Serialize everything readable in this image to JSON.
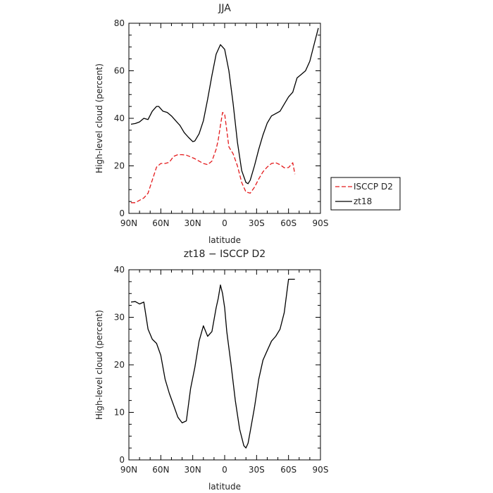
{
  "chart_data": [
    {
      "type": "line",
      "title": "JJA",
      "xlabel": "latitude",
      "ylabel": "High-level cloud (percent)",
      "xlim": [
        90,
        -90
      ],
      "ylim": [
        0,
        80
      ],
      "x_tick_values": [
        90,
        60,
        30,
        0,
        -30,
        -60,
        -90
      ],
      "x_tick_labels": [
        "90N",
        "60N",
        "30N",
        "0",
        "30S",
        "60S",
        "90S"
      ],
      "y_tick_values": [
        0,
        20,
        40,
        60,
        80
      ],
      "y_tick_labels": [
        "0",
        "20",
        "40",
        "60",
        "80"
      ],
      "legend": "right",
      "series": [
        {
          "name": "ISCCP D2",
          "color": "#e41a1c",
          "style": "dashed",
          "x": [
            88,
            84,
            80,
            76,
            72,
            68,
            64,
            60,
            56,
            52,
            48,
            44,
            40,
            36,
            32,
            28,
            24,
            20,
            16,
            12,
            8,
            6,
            4,
            2,
            0,
            -4,
            -8,
            -12,
            -16,
            -20,
            -24,
            -28,
            -32,
            -36,
            -40,
            -44,
            -48,
            -52,
            -56,
            -60,
            -64,
            -66
          ],
          "y": [
            4.5,
            4.5,
            5.5,
            6.5,
            8.5,
            14,
            19.5,
            21,
            21,
            21.5,
            24,
            24.7,
            24.7,
            24.5,
            23.8,
            23,
            22,
            21,
            20.5,
            22,
            27,
            31,
            37,
            42.5,
            41.8,
            28,
            25,
            20,
            13,
            9,
            8.5,
            11,
            14.5,
            17.5,
            19.5,
            21,
            21.3,
            20.5,
            19.2,
            19.3,
            21.3,
            16.5
          ]
        },
        {
          "name": "zt18",
          "color": "#000000",
          "style": "solid",
          "x": [
            88,
            84,
            80,
            76,
            72,
            68,
            64,
            62,
            58,
            54,
            50,
            46,
            42,
            38,
            34,
            30,
            28,
            24,
            20,
            16,
            12,
            8,
            4,
            0,
            -4,
            -8,
            -12,
            -16,
            -20,
            -22,
            -24,
            -28,
            -32,
            -36,
            -40,
            -44,
            -48,
            -52,
            -56,
            -60,
            -64,
            -68,
            -72,
            -76,
            -80,
            -84,
            -88
          ],
          "y": [
            37.5,
            37.8,
            38.5,
            40,
            39.5,
            43,
            45,
            45,
            43,
            42.5,
            41,
            39,
            37,
            34,
            32,
            30.2,
            30.5,
            33.5,
            39,
            48,
            58,
            67,
            71,
            69,
            60,
            46,
            30,
            18,
            13,
            12.5,
            14,
            20,
            27,
            33,
            38,
            41,
            42,
            43,
            46,
            49,
            51,
            57,
            58.5,
            60,
            64,
            71,
            78
          ]
        }
      ]
    },
    {
      "type": "line",
      "title": "zt18 − ISCCP D2",
      "xlabel": "latitude",
      "ylabel": "High-level cloud (percent)",
      "xlim": [
        90,
        -90
      ],
      "ylim": [
        0,
        40
      ],
      "x_tick_values": [
        90,
        60,
        30,
        0,
        -30,
        -60,
        -90
      ],
      "x_tick_labels": [
        "90N",
        "60N",
        "30N",
        "0",
        "30S",
        "60S",
        "90S"
      ],
      "y_tick_values": [
        0,
        10,
        20,
        30,
        40
      ],
      "y_tick_labels": [
        "0",
        "10",
        "20",
        "30",
        "40"
      ],
      "series": [
        {
          "name": "",
          "color": "#000000",
          "style": "solid",
          "x": [
            88,
            84,
            80,
            76,
            72,
            68,
            64,
            60,
            56,
            52,
            48,
            44,
            40,
            36,
            32,
            28,
            24,
            20,
            16,
            12,
            8,
            6,
            4,
            2,
            0,
            -2,
            -6,
            -10,
            -14,
            -18,
            -20,
            -22,
            -24,
            -28,
            -32,
            -36,
            -40,
            -44,
            -48,
            -52,
            -56,
            -60,
            -63,
            -66
          ],
          "y": [
            33.2,
            33.3,
            32.8,
            33.2,
            27.5,
            25.4,
            24.5,
            22,
            17,
            14,
            11.5,
            9,
            7.8,
            8.2,
            15,
            19.5,
            25,
            28.2,
            26,
            27,
            32,
            34,
            36.8,
            35,
            32,
            27,
            20,
            12.5,
            6.5,
            3,
            2.5,
            3.5,
            6,
            11,
            17,
            21,
            23,
            25,
            26,
            27.5,
            31,
            38,
            38,
            38
          ]
        }
      ]
    }
  ]
}
